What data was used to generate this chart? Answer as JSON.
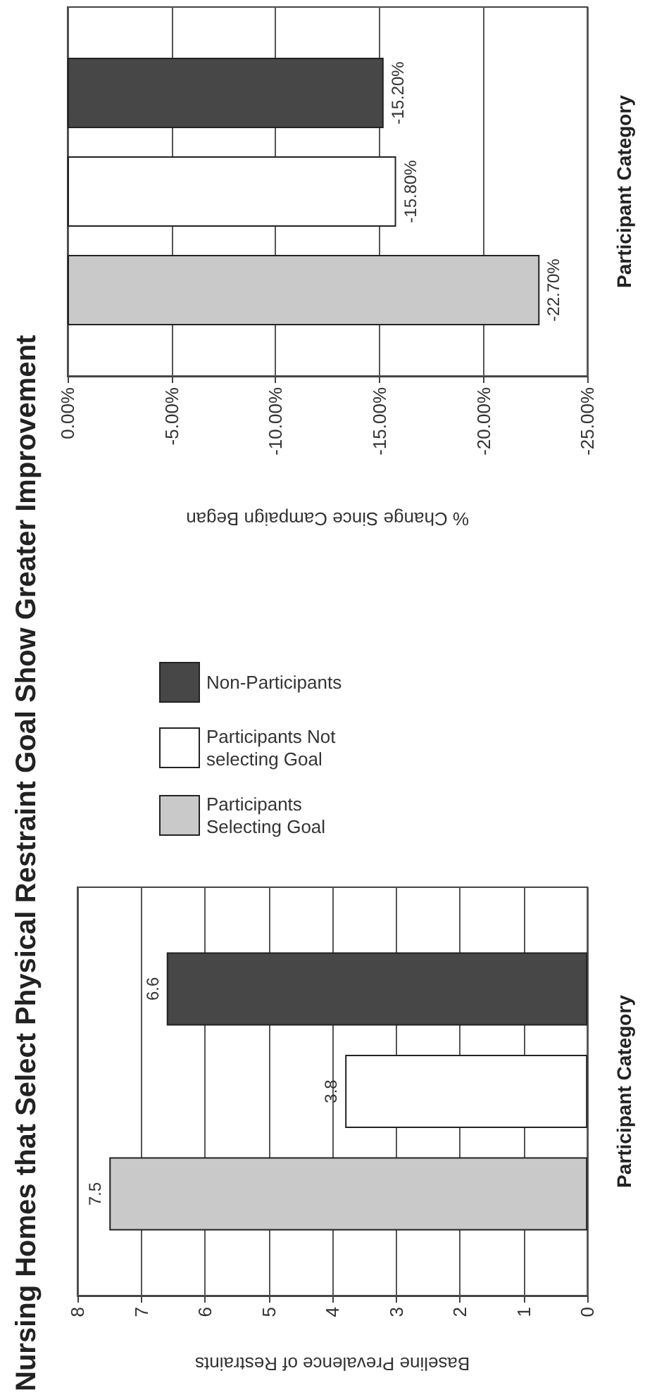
{
  "chart_data": [
    {
      "type": "bar",
      "orientation": "horizontal",
      "title": "Nursing Homes that Select Physical Restraint Goal Show Greater Improvement",
      "xlabel": "Baseline Prevalence of Restraints",
      "ylabel": "Participant Category",
      "categories": [
        null
      ],
      "series": [
        {
          "name": "Non-Participants",
          "color": "#474747",
          "values": [
            6.6
          ]
        },
        {
          "name": "Participants Not selecting Goal",
          "color": "#ffffff",
          "values": [
            3.8
          ]
        },
        {
          "name": "Participants Selecting Goal",
          "color": "#c9c9c9",
          "values": [
            7.5
          ]
        }
      ],
      "xlim": [
        8,
        0
      ],
      "xticks": [
        0,
        1,
        2,
        3,
        4,
        5,
        6,
        7,
        8
      ],
      "grid": "x",
      "legend": "top",
      "data_labels": true
    },
    {
      "type": "bar",
      "orientation": "horizontal",
      "xlabel": "% Change Since Campaign Began",
      "ylabel": "Participant Category",
      "categories": [
        null
      ],
      "series": [
        {
          "color": "#474747",
          "values": [
            -15.2
          ],
          "value_labels": [
            "-15.20%"
          ]
        },
        {
          "color": "#ffffff",
          "values": [
            -15.8
          ],
          "value_labels": [
            "-15.80%"
          ]
        },
        {
          "color": "#c9c9c9",
          "values": [
            -22.7
          ],
          "value_labels": [
            "-22.70%"
          ]
        }
      ],
      "xlim": [
        0,
        -25
      ],
      "xticks": [
        {
          "value": 0,
          "label": "0.00%"
        },
        {
          "value": -5,
          "label": "-5.00%"
        },
        {
          "value": -10,
          "label": "-10.00%"
        },
        {
          "value": -15,
          "label": "-15.00%"
        },
        {
          "value": -20,
          "label": "-20.00%"
        },
        {
          "value": -25,
          "label": "-25.00%"
        }
      ],
      "grid": "x"
    }
  ]
}
